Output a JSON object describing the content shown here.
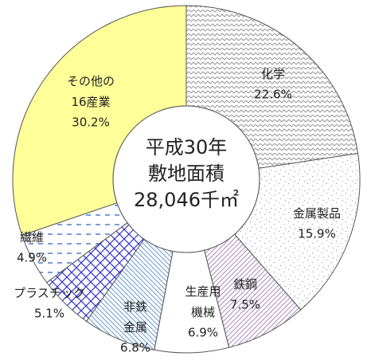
{
  "chart_data": {
    "type": "pie",
    "center_text": [
      "平成30年",
      "敷地面積",
      "28,046千㎡"
    ],
    "categories": [
      "化学",
      "金属製品",
      "鉄鋼",
      "生産用\n機械",
      "非鉄\n金属",
      "プラスチック",
      "繊維",
      "その他の\n16産業"
    ],
    "values": [
      22.6,
      15.9,
      7.5,
      6.9,
      6.8,
      5.1,
      4.9,
      30.2
    ],
    "value_labels": [
      "22.6%",
      "15.9%",
      "7.5%",
      "6.9%",
      "6.8%",
      "5.1%",
      "4.9%",
      "30.2%"
    ],
    "colors": [
      "#999999",
      "#8888aa",
      "#aa88bb",
      "#ffffff",
      "#6699cc",
      "#3333cc",
      "#3366cc",
      "#ffff99"
    ]
  }
}
